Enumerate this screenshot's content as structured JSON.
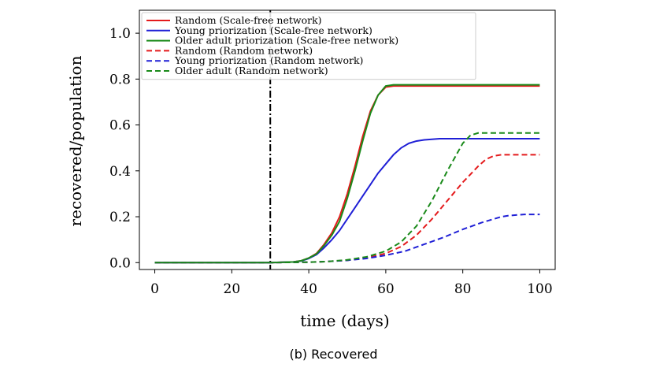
{
  "caption": "(b) Recovered",
  "chart_data": {
    "type": "line",
    "xlabel": "time (days)",
    "ylabel": "recovered/population",
    "xlim": [
      -4,
      104
    ],
    "ylim": [
      -0.03,
      1.1
    ],
    "xticks": [
      0,
      20,
      40,
      60,
      80,
      100
    ],
    "xtick_labels": [
      "0",
      "20",
      "40",
      "60",
      "80",
      "100"
    ],
    "yticks": [
      0.0,
      0.2,
      0.4,
      0.6,
      0.8,
      1.0
    ],
    "ytick_labels": [
      "0.0",
      "0.2",
      "0.4",
      "0.6",
      "0.8",
      "1.0"
    ],
    "grid": false,
    "legend_position": "upper-left",
    "vline": {
      "x": 30,
      "style": "dash-dot",
      "color": "#000000"
    },
    "series": [
      {
        "name": "Random (Scale-free network)",
        "color": "#e41a1c",
        "dash": "solid",
        "x": [
          0,
          10,
          20,
          30,
          36,
          38,
          40,
          42,
          44,
          46,
          48,
          50,
          52,
          54,
          56,
          58,
          60,
          62,
          64,
          70,
          80,
          90,
          100
        ],
        "y": [
          0.0,
          0.0,
          0.0,
          0.0,
          0.003,
          0.008,
          0.02,
          0.04,
          0.08,
          0.13,
          0.2,
          0.3,
          0.42,
          0.55,
          0.66,
          0.73,
          0.765,
          0.77,
          0.77,
          0.77,
          0.77,
          0.77,
          0.77
        ]
      },
      {
        "name": "Young priorization (Scale-free network)",
        "color": "#1f1fd6",
        "dash": "solid",
        "x": [
          0,
          10,
          20,
          30,
          36,
          38,
          40,
          42,
          44,
          46,
          48,
          50,
          52,
          54,
          56,
          58,
          60,
          62,
          64,
          66,
          68,
          70,
          74,
          80,
          90,
          100
        ],
        "y": [
          0.0,
          0.0,
          0.0,
          0.0,
          0.003,
          0.007,
          0.018,
          0.035,
          0.065,
          0.1,
          0.14,
          0.19,
          0.24,
          0.29,
          0.34,
          0.39,
          0.43,
          0.47,
          0.5,
          0.52,
          0.53,
          0.535,
          0.54,
          0.54,
          0.54,
          0.54
        ]
      },
      {
        "name": "Older adult priorization (Scale-free network)",
        "color": "#1a8a1a",
        "dash": "solid",
        "x": [
          0,
          10,
          20,
          30,
          36,
          38,
          40,
          42,
          44,
          46,
          48,
          50,
          52,
          54,
          56,
          58,
          60,
          62,
          64,
          70,
          80,
          90,
          100
        ],
        "y": [
          0.0,
          0.0,
          0.0,
          0.0,
          0.003,
          0.008,
          0.02,
          0.038,
          0.075,
          0.12,
          0.18,
          0.28,
          0.4,
          0.53,
          0.65,
          0.73,
          0.77,
          0.775,
          0.775,
          0.775,
          0.775,
          0.775,
          0.775
        ]
      },
      {
        "name": "Random (Random network)",
        "color": "#e41a1c",
        "dash": "dashed",
        "x": [
          0,
          10,
          20,
          30,
          40,
          45,
          50,
          55,
          60,
          64,
          68,
          72,
          76,
          80,
          84,
          86,
          88,
          90,
          92,
          96,
          100
        ],
        "y": [
          0.0,
          0.0,
          0.0,
          0.0,
          0.002,
          0.005,
          0.01,
          0.02,
          0.04,
          0.07,
          0.12,
          0.19,
          0.27,
          0.35,
          0.42,
          0.45,
          0.465,
          0.47,
          0.47,
          0.47,
          0.47
        ]
      },
      {
        "name": "Young priorization (Random network)",
        "color": "#1f1fd6",
        "dash": "dashed",
        "x": [
          0,
          10,
          20,
          30,
          40,
          45,
          50,
          55,
          60,
          65,
          70,
          75,
          80,
          85,
          88,
          90,
          92,
          96,
          100
        ],
        "y": [
          0.0,
          0.0,
          0.0,
          0.0,
          0.002,
          0.005,
          0.01,
          0.018,
          0.032,
          0.05,
          0.08,
          0.11,
          0.145,
          0.175,
          0.19,
          0.2,
          0.205,
          0.21,
          0.21
        ]
      },
      {
        "name": "Older adult (Random network)",
        "color": "#1a8a1a",
        "dash": "dashed",
        "x": [
          0,
          10,
          20,
          30,
          40,
          45,
          50,
          55,
          58,
          60,
          64,
          68,
          72,
          76,
          78,
          80,
          82,
          84,
          86,
          90,
          100
        ],
        "y": [
          0.0,
          0.0,
          0.0,
          0.0,
          0.002,
          0.005,
          0.012,
          0.025,
          0.04,
          0.05,
          0.09,
          0.16,
          0.27,
          0.4,
          0.46,
          0.52,
          0.555,
          0.565,
          0.565,
          0.565,
          0.565
        ]
      }
    ]
  }
}
